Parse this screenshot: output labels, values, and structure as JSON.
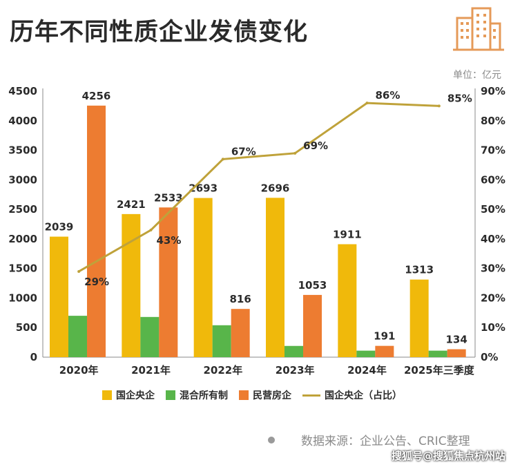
{
  "title": "历年不同性质企业发债变化",
  "unit_label": "单位：亿元",
  "source": "数据来源：企业公告、CRIC整理",
  "watermark": "搜狐号@搜狐焦点杭州站",
  "colors": {
    "central_soe": "#F0B90B",
    "mixed": "#58B54A",
    "private": "#ED7C31",
    "share_line": "#BFA23A",
    "axis": "#8a8a8a",
    "text": "#2b2b2b"
  },
  "chart_data": {
    "type": "bar",
    "categories": [
      "2020年",
      "2021年",
      "2022年",
      "2023年",
      "2024年",
      "2025年三季度"
    ],
    "series": [
      {
        "name": "国企央企",
        "type": "bar",
        "values": [
          2039,
          2421,
          2693,
          2696,
          1911,
          1313
        ],
        "labels": [
          "2039",
          "2421",
          "2693",
          "2696",
          "1911",
          "1313"
        ]
      },
      {
        "name": "混合所有制",
        "type": "bar",
        "values": [
          700,
          680,
          540,
          190,
          110,
          110
        ]
      },
      {
        "name": "民营房企",
        "type": "bar",
        "values": [
          4256,
          2533,
          816,
          1053,
          191,
          134
        ],
        "labels": [
          "4256",
          "2533",
          "816",
          "1053",
          "191",
          "134"
        ]
      },
      {
        "name": "国企央企（占比）",
        "type": "line",
        "axis": "right",
        "values": [
          29,
          43,
          67,
          69,
          86,
          85
        ],
        "labels": [
          "29%",
          "43%",
          "67%",
          "69%",
          "86%",
          "85%"
        ]
      }
    ],
    "y_left": {
      "min": 0,
      "max": 4500,
      "ticks": [
        "0",
        "500",
        "1000",
        "1500",
        "2000",
        "2500",
        "3000",
        "3500",
        "4000",
        "4500"
      ]
    },
    "y_right": {
      "min": 0,
      "max": 90,
      "ticks": [
        "0%",
        "10%",
        "20%",
        "30%",
        "40%",
        "50%",
        "60%",
        "70%",
        "80%",
        "90%"
      ]
    },
    "legend_position": "bottom",
    "grid": false
  }
}
